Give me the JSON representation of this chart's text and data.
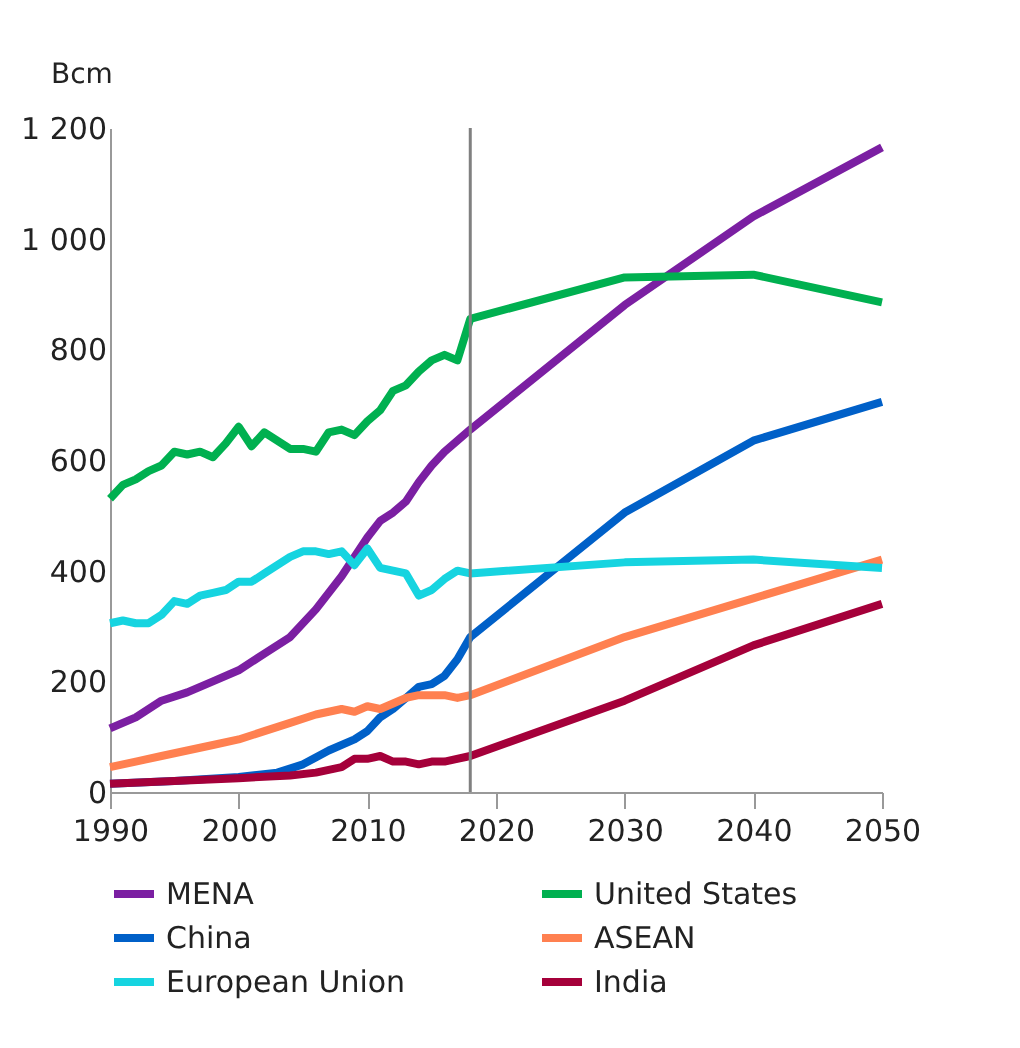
{
  "chart_data": {
    "type": "line",
    "ylabel": "Bcm",
    "xlim": [
      1990,
      2050
    ],
    "xticks": [
      1990,
      2000,
      2010,
      2020,
      2030,
      2040,
      2050
    ],
    "ylim": [
      0,
      1200
    ],
    "yticks": [
      0,
      200,
      400,
      600,
      800,
      {
        "value": 1000,
        "label": "1 000"
      },
      {
        "value": 1200,
        "label": "1 200"
      }
    ],
    "legend": "bottom",
    "line_style": "solid",
    "ref_lines": [
      {
        "axis": "x",
        "value": 2018,
        "color": "#808080"
      }
    ],
    "series": [
      {
        "name": "MENA",
        "color": "#7b1fa2",
        "x": [
          1990,
          1992,
          1994,
          1996,
          1998,
          2000,
          2002,
          2004,
          2006,
          2008,
          2010,
          2011,
          2012,
          2013,
          2014,
          2015,
          2016,
          2018,
          2030,
          2040,
          2050
        ],
        "values": [
          115,
          135,
          165,
          180,
          200,
          220,
          250,
          280,
          330,
          390,
          460,
          490,
          505,
          525,
          560,
          590,
          615,
          655,
          880,
          1040,
          1165
        ]
      },
      {
        "name": "United States",
        "color": "#00b050",
        "x": [
          1990,
          1991,
          1992,
          1993,
          1994,
          1995,
          1996,
          1997,
          1998,
          1999,
          2000,
          2001,
          2002,
          2003,
          2004,
          2005,
          2006,
          2007,
          2008,
          2009,
          2010,
          2011,
          2012,
          2013,
          2014,
          2015,
          2016,
          2017,
          2018,
          2030,
          2040,
          2050
        ],
        "values": [
          530,
          555,
          565,
          580,
          590,
          615,
          610,
          615,
          605,
          630,
          660,
          625,
          650,
          635,
          620,
          620,
          615,
          650,
          655,
          645,
          670,
          690,
          725,
          735,
          760,
          780,
          790,
          780,
          855,
          930,
          935,
          885
        ]
      },
      {
        "name": "China",
        "color": "#0060c8",
        "x": [
          1990,
          1995,
          2000,
          2003,
          2005,
          2007,
          2009,
          2010,
          2011,
          2012,
          2013,
          2014,
          2015,
          2016,
          2017,
          2018,
          2030,
          2040,
          2050
        ],
        "values": [
          15,
          20,
          27,
          35,
          50,
          75,
          95,
          110,
          135,
          150,
          170,
          190,
          195,
          210,
          240,
          280,
          505,
          635,
          705
        ]
      },
      {
        "name": "ASEAN",
        "color": "#ff8050",
        "x": [
          1990,
          1992,
          1994,
          1996,
          1998,
          2000,
          2002,
          2004,
          2006,
          2008,
          2009,
          2010,
          2011,
          2012,
          2013,
          2014,
          2015,
          2016,
          2017,
          2018,
          2030,
          2040,
          2050
        ],
        "values": [
          45,
          55,
          65,
          75,
          85,
          95,
          110,
          125,
          140,
          150,
          145,
          155,
          150,
          160,
          170,
          175,
          175,
          175,
          170,
          175,
          280,
          350,
          420
        ]
      },
      {
        "name": "European Union",
        "color": "#16d4e0",
        "x": [
          1990,
          1991,
          1992,
          1993,
          1994,
          1995,
          1996,
          1997,
          1998,
          1999,
          2000,
          2001,
          2002,
          2003,
          2004,
          2005,
          2006,
          2007,
          2008,
          2009,
          2010,
          2011,
          2012,
          2013,
          2014,
          2015,
          2016,
          2017,
          2018,
          2030,
          2040,
          2050
        ],
        "values": [
          305,
          310,
          305,
          305,
          320,
          345,
          340,
          355,
          360,
          365,
          380,
          380,
          395,
          410,
          425,
          435,
          435,
          430,
          435,
          410,
          440,
          405,
          400,
          395,
          355,
          365,
          385,
          400,
          395,
          415,
          420,
          405
        ]
      },
      {
        "name": "India",
        "color": "#a5003a",
        "x": [
          1990,
          1995,
          2000,
          2004,
          2006,
          2008,
          2009,
          2010,
          2011,
          2012,
          2013,
          2014,
          2015,
          2016,
          2018,
          2030,
          2040,
          2050
        ],
        "values": [
          15,
          20,
          25,
          30,
          35,
          45,
          60,
          60,
          65,
          55,
          55,
          50,
          55,
          55,
          65,
          165,
          265,
          340
        ]
      }
    ]
  }
}
